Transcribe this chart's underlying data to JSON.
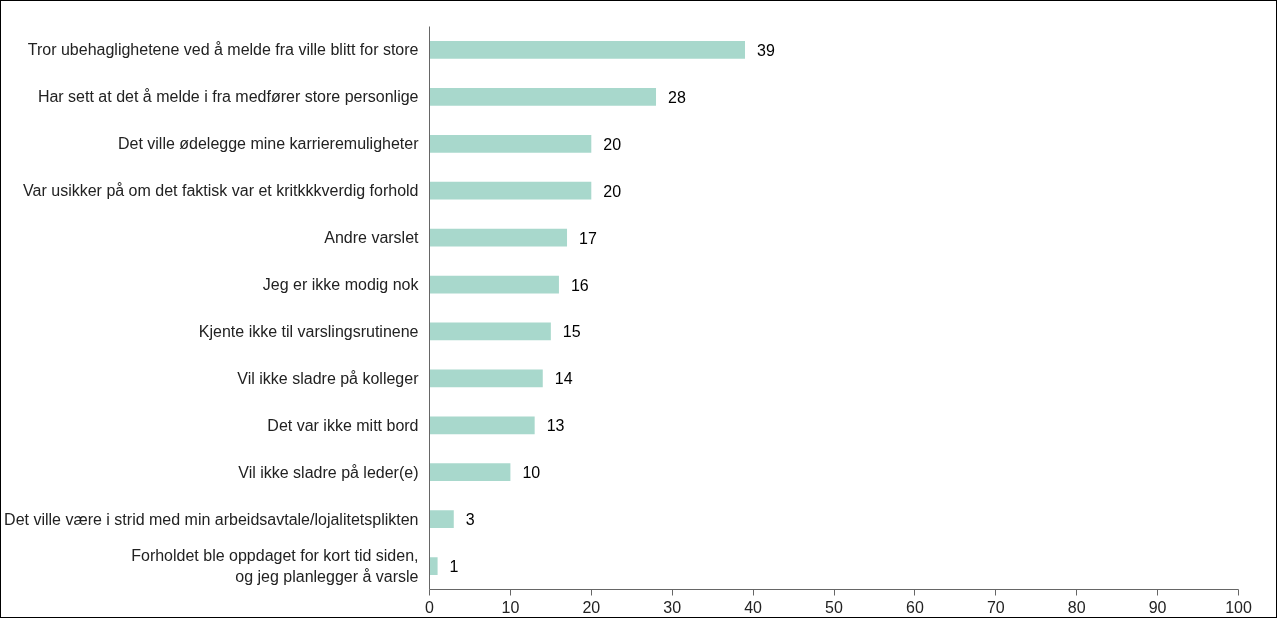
{
  "chart_data": {
    "type": "bar",
    "orientation": "horizontal",
    "categories": [
      "Tror ubehaglighetene ved å melde fra ville blitt for store",
      "Har sett at det å melde i fra medfører store personlige",
      "Det ville ødelegge mine karrieremuligheter",
      "Var usikker på om det faktisk var et kritkkkverdig forhold",
      "Andre varslet",
      "Jeg er ikke modig nok",
      "Kjente ikke til varslingsrutinene",
      "Vil ikke sladre på kolleger",
      "Det var ikke mitt bord",
      "Vil ikke sladre på leder(e)",
      "Det ville være i strid med min arbeidsavtale/lojalitetsplikten",
      "Forholdet ble oppdaget for kort tid siden,\nog jeg planlegger å varsle"
    ],
    "values": [
      39,
      28,
      20,
      20,
      17,
      16,
      15,
      14,
      13,
      10,
      3,
      1
    ],
    "color": "#a8d8cc",
    "xlim": [
      0,
      100
    ],
    "xticks": [
      0,
      10,
      20,
      30,
      40,
      50,
      60,
      70,
      80,
      90,
      100
    ],
    "data_labels": true,
    "grid": false
  }
}
